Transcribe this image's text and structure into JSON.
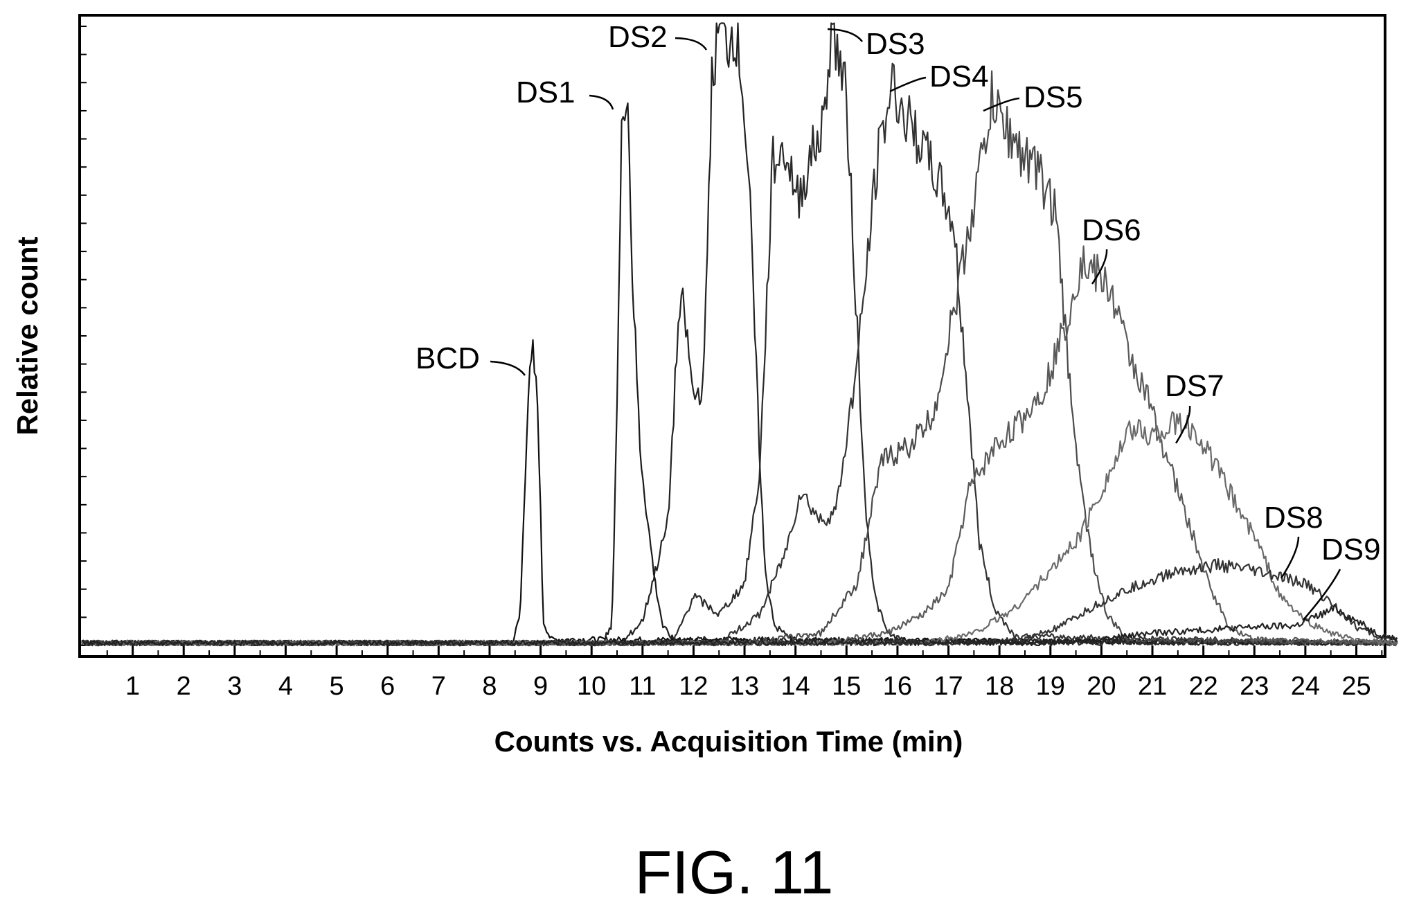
{
  "figure": {
    "caption": "FIG. 11"
  },
  "chart_data": {
    "type": "line",
    "xlabel": "Counts vs. Acquisition Time (min)",
    "ylabel": "Relative count",
    "xlim": [
      0,
      25.8
    ],
    "ylim": [
      0,
      1
    ],
    "x_ticks": [
      "1",
      "2",
      "3",
      "4",
      "5",
      "6",
      "7",
      "8",
      "9",
      "10",
      "11",
      "12",
      "13",
      "14",
      "15",
      "16",
      "17",
      "18",
      "19",
      "20",
      "21",
      "22",
      "23",
      "24",
      "25"
    ],
    "grid": false,
    "legend": "none",
    "series": [
      {
        "name": "BCD",
        "points": [
          [
            0,
            0.004
          ],
          [
            8.45,
            0.004
          ],
          [
            8.6,
            0.05
          ],
          [
            8.75,
            0.4
          ],
          [
            8.85,
            0.47
          ],
          [
            8.95,
            0.38
          ],
          [
            9.05,
            0.04
          ],
          [
            9.2,
            0.01
          ],
          [
            25.8,
            0.004
          ]
        ]
      },
      {
        "name": "DS1",
        "points": [
          [
            0,
            0.004
          ],
          [
            10.2,
            0.004
          ],
          [
            10.4,
            0.03
          ],
          [
            10.5,
            0.4
          ],
          [
            10.6,
            0.86
          ],
          [
            10.7,
            0.92
          ],
          [
            10.8,
            0.6
          ],
          [
            10.95,
            0.32
          ],
          [
            11.1,
            0.2
          ],
          [
            11.25,
            0.1
          ],
          [
            11.4,
            0.03
          ],
          [
            11.6,
            0.01
          ],
          [
            25.8,
            0.004
          ]
        ]
      },
      {
        "name": "DS2",
        "points": [
          [
            0,
            0.004
          ],
          [
            10.6,
            0.004
          ],
          [
            11.0,
            0.04
          ],
          [
            11.5,
            0.2
          ],
          [
            11.7,
            0.52
          ],
          [
            11.8,
            0.55
          ],
          [
            12.0,
            0.4
          ],
          [
            12.2,
            0.42
          ],
          [
            12.35,
            0.9
          ],
          [
            12.5,
            1.0
          ],
          [
            12.65,
            0.97
          ],
          [
            12.8,
            1.0
          ],
          [
            12.95,
            0.92
          ],
          [
            13.1,
            0.72
          ],
          [
            13.25,
            0.4
          ],
          [
            13.4,
            0.12
          ],
          [
            13.6,
            0.03
          ],
          [
            14.0,
            0.008
          ],
          [
            25.8,
            0.004
          ]
        ]
      },
      {
        "name": "DS3",
        "points": [
          [
            0,
            0.004
          ],
          [
            11.6,
            0.004
          ],
          [
            12.0,
            0.08
          ],
          [
            12.5,
            0.05
          ],
          [
            13.0,
            0.1
          ],
          [
            13.3,
            0.28
          ],
          [
            13.55,
            0.78
          ],
          [
            13.8,
            0.8
          ],
          [
            14.05,
            0.72
          ],
          [
            14.3,
            0.79
          ],
          [
            14.55,
            0.84
          ],
          [
            14.7,
            1.0
          ],
          [
            14.85,
            0.95
          ],
          [
            15.0,
            0.88
          ],
          [
            15.15,
            0.62
          ],
          [
            15.35,
            0.25
          ],
          [
            15.55,
            0.08
          ],
          [
            15.8,
            0.02
          ],
          [
            16.2,
            0.005
          ],
          [
            25.8,
            0.004
          ]
        ]
      },
      {
        "name": "DS4",
        "points": [
          [
            0,
            0.004
          ],
          [
            12.5,
            0.004
          ],
          [
            13.3,
            0.05
          ],
          [
            13.8,
            0.15
          ],
          [
            14.1,
            0.25
          ],
          [
            14.5,
            0.2
          ],
          [
            14.8,
            0.22
          ],
          [
            15.2,
            0.45
          ],
          [
            15.6,
            0.78
          ],
          [
            15.9,
            0.91
          ],
          [
            16.1,
            0.86
          ],
          [
            16.4,
            0.82
          ],
          [
            16.8,
            0.75
          ],
          [
            17.1,
            0.68
          ],
          [
            17.4,
            0.38
          ],
          [
            17.6,
            0.17
          ],
          [
            17.9,
            0.06
          ],
          [
            18.3,
            0.015
          ],
          [
            25.8,
            0.004
          ]
        ]
      },
      {
        "name": "DS5",
        "points": [
          [
            0,
            0.004
          ],
          [
            13.0,
            0.004
          ],
          [
            14.5,
            0.02
          ],
          [
            15.2,
            0.1
          ],
          [
            15.7,
            0.3
          ],
          [
            16.2,
            0.32
          ],
          [
            16.7,
            0.37
          ],
          [
            17.2,
            0.58
          ],
          [
            17.6,
            0.76
          ],
          [
            17.85,
            0.88
          ],
          [
            18.1,
            0.84
          ],
          [
            18.4,
            0.8
          ],
          [
            18.8,
            0.76
          ],
          [
            19.1,
            0.7
          ],
          [
            19.35,
            0.45
          ],
          [
            19.6,
            0.25
          ],
          [
            19.85,
            0.13
          ],
          [
            20.1,
            0.05
          ],
          [
            20.5,
            0.01
          ],
          [
            25.8,
            0.004
          ]
        ]
      },
      {
        "name": "DS6",
        "points": [
          [
            0,
            0.004
          ],
          [
            14.5,
            0.004
          ],
          [
            15.8,
            0.02
          ],
          [
            16.5,
            0.05
          ],
          [
            17.0,
            0.09
          ],
          [
            17.4,
            0.25
          ],
          [
            17.9,
            0.32
          ],
          [
            18.4,
            0.36
          ],
          [
            18.9,
            0.42
          ],
          [
            19.3,
            0.52
          ],
          [
            19.6,
            0.62
          ],
          [
            19.9,
            0.6
          ],
          [
            20.2,
            0.57
          ],
          [
            20.5,
            0.48
          ],
          [
            20.9,
            0.4
          ],
          [
            21.3,
            0.3
          ],
          [
            21.7,
            0.2
          ],
          [
            22.1,
            0.1
          ],
          [
            22.5,
            0.03
          ],
          [
            23.0,
            0.01
          ],
          [
            25.8,
            0.004
          ]
        ]
      },
      {
        "name": "DS7",
        "points": [
          [
            0,
            0.004
          ],
          [
            16.5,
            0.004
          ],
          [
            17.5,
            0.02
          ],
          [
            18.3,
            0.06
          ],
          [
            19.0,
            0.12
          ],
          [
            19.6,
            0.18
          ],
          [
            20.1,
            0.27
          ],
          [
            20.6,
            0.35
          ],
          [
            21.0,
            0.34
          ],
          [
            21.5,
            0.36
          ],
          [
            21.9,
            0.34
          ],
          [
            22.3,
            0.28
          ],
          [
            22.7,
            0.22
          ],
          [
            23.1,
            0.16
          ],
          [
            23.5,
            0.08
          ],
          [
            24.0,
            0.04
          ],
          [
            24.5,
            0.02
          ],
          [
            25.0,
            0.008
          ],
          [
            25.8,
            0.004
          ]
        ]
      },
      {
        "name": "DS8",
        "points": [
          [
            0,
            0.004
          ],
          [
            17.5,
            0.004
          ],
          [
            18.5,
            0.01
          ],
          [
            19.2,
            0.03
          ],
          [
            20.0,
            0.07
          ],
          [
            20.8,
            0.1
          ],
          [
            21.5,
            0.12
          ],
          [
            22.3,
            0.13
          ],
          [
            23.0,
            0.12
          ],
          [
            23.5,
            0.11
          ],
          [
            24.0,
            0.1
          ],
          [
            24.5,
            0.07
          ],
          [
            25.0,
            0.03
          ],
          [
            25.4,
            0.015
          ],
          [
            25.8,
            0.008
          ]
        ]
      },
      {
        "name": "DS9",
        "points": [
          [
            0,
            0.004
          ],
          [
            19.0,
            0.004
          ],
          [
            20.0,
            0.01
          ],
          [
            21.0,
            0.02
          ],
          [
            22.0,
            0.025
          ],
          [
            23.0,
            0.03
          ],
          [
            23.8,
            0.032
          ],
          [
            24.3,
            0.05
          ],
          [
            24.6,
            0.06
          ],
          [
            25.0,
            0.04
          ],
          [
            25.4,
            0.02
          ],
          [
            25.8,
            0.01
          ]
        ]
      }
    ]
  }
}
